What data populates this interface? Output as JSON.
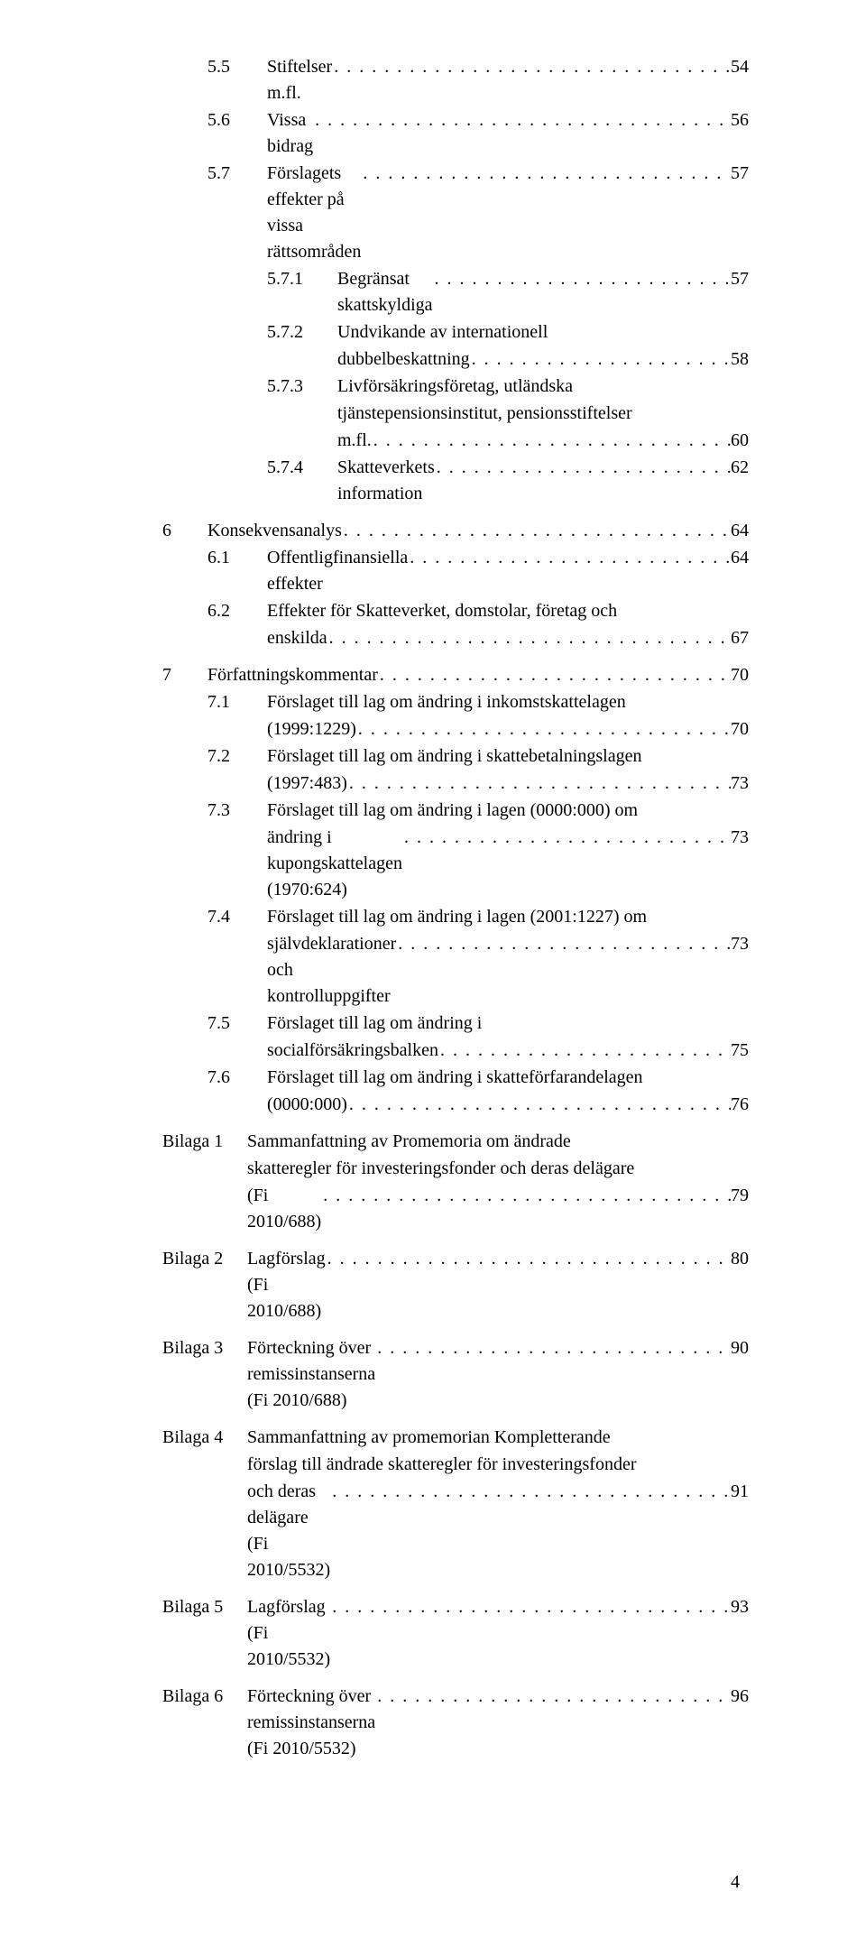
{
  "toc": [
    {
      "group": true,
      "rows": [
        {
          "indent": 2,
          "num": "5.5",
          "title": "Stiftelser m.fl.",
          "page": "54"
        },
        {
          "indent": 2,
          "num": "5.6",
          "title": "Vissa bidrag",
          "page": "56"
        },
        {
          "indent": 2,
          "num": "5.7",
          "title": "Förslagets effekter på vissa rättsområden",
          "page": "57"
        },
        {
          "indent": 3,
          "num": "5.7.1",
          "title": "Begränsat skattskyldiga",
          "page": "57"
        },
        {
          "indent": 3,
          "num": "5.7.2",
          "title_lines": [
            "Undvikande av internationell"
          ],
          "last_line": "dubbelbeskattning",
          "page": "58"
        },
        {
          "indent": 3,
          "num": "5.7.3",
          "title_lines": [
            "Livförsäkringsföretag, utländska",
            "tjänstepensionsinstitut, pensionsstiftelser"
          ],
          "last_line": "m.fl. ",
          "page": "60"
        },
        {
          "indent": 3,
          "num": "5.7.4",
          "title": "Skatteverkets information",
          "page": "62"
        }
      ]
    },
    {
      "group": true,
      "rows": [
        {
          "indent": 1,
          "num": "6",
          "title": "Konsekvensanalys",
          "page": "64"
        },
        {
          "indent": 2,
          "num": "6.1",
          "title": "Offentligfinansiella effekter",
          "page": "64"
        },
        {
          "indent": 2,
          "num": "6.2",
          "title_lines": [
            "Effekter för Skatteverket, domstolar, företag och"
          ],
          "last_line": "enskilda",
          "page": "67"
        }
      ]
    },
    {
      "group": true,
      "rows": [
        {
          "indent": 1,
          "num": "7",
          "title": "Författningskommentar",
          "page": "70"
        },
        {
          "indent": 2,
          "num": "7.1",
          "title_lines": [
            "Förslaget till lag om ändring i inkomstskattelagen"
          ],
          "last_line": "(1999:1229)",
          "page": "70"
        },
        {
          "indent": 2,
          "num": "7.2",
          "title_lines": [
            "Förslaget till lag om ändring i skattebetalningslagen"
          ],
          "last_line": "(1997:483)",
          "page": "73"
        },
        {
          "indent": 2,
          "num": "7.3",
          "title_lines": [
            "Förslaget till lag om ändring i lagen (0000:000) om"
          ],
          "last_line": "ändring i kupongskattelagen (1970:624)",
          "page": "73"
        },
        {
          "indent": 2,
          "num": "7.4",
          "title_lines": [
            "Förslaget till lag om ändring i lagen (2001:1227) om"
          ],
          "last_line": "självdeklarationer och kontrolluppgifter",
          "page": "73"
        },
        {
          "indent": 2,
          "num": "7.5",
          "title_lines": [
            "Förslaget till lag om ändring i"
          ],
          "last_line": "socialförsäkringsbalken",
          "page": "75"
        },
        {
          "indent": 2,
          "num": "7.6",
          "title_lines": [
            "Förslaget till lag om ändring i skatteförfarandelagen"
          ],
          "last_line": "(0000:000)",
          "page": "76"
        }
      ]
    },
    {
      "group": true,
      "rows": [
        {
          "indent": "b",
          "num": "Bilaga 1",
          "title_lines": [
            "Sammanfattning av Promemoria om ändrade",
            "skatteregler för investeringsfonder och deras delägare"
          ],
          "last_line": "(Fi 2010/688)",
          "page": "79"
        }
      ]
    },
    {
      "group": true,
      "rows": [
        {
          "indent": "b",
          "num": "Bilaga 2",
          "title": "Lagförslag (Fi 2010/688)",
          "page": "80"
        }
      ]
    },
    {
      "group": true,
      "rows": [
        {
          "indent": "b",
          "num": "Bilaga 3",
          "title": "Förteckning över remissinstanserna (Fi 2010/688)",
          "page": "90"
        }
      ]
    },
    {
      "group": true,
      "rows": [
        {
          "indent": "b",
          "num": "Bilaga 4",
          "title_lines": [
            "Sammanfattning av promemorian Kompletterande",
            "förslag till ändrade skatteregler för investeringsfonder"
          ],
          "last_line": "och deras delägare (Fi 2010/5532)",
          "page": "91"
        }
      ]
    },
    {
      "group": true,
      "rows": [
        {
          "indent": "b",
          "num": "Bilaga 5",
          "title": "Lagförslag (Fi 2010/5532)",
          "page": "93"
        }
      ]
    },
    {
      "group": true,
      "rows": [
        {
          "indent": "b",
          "num": "Bilaga 6",
          "title": "Förteckning över remissinstanserna (Fi 2010/5532)",
          "page": "96"
        }
      ]
    }
  ],
  "footer_page": "4"
}
